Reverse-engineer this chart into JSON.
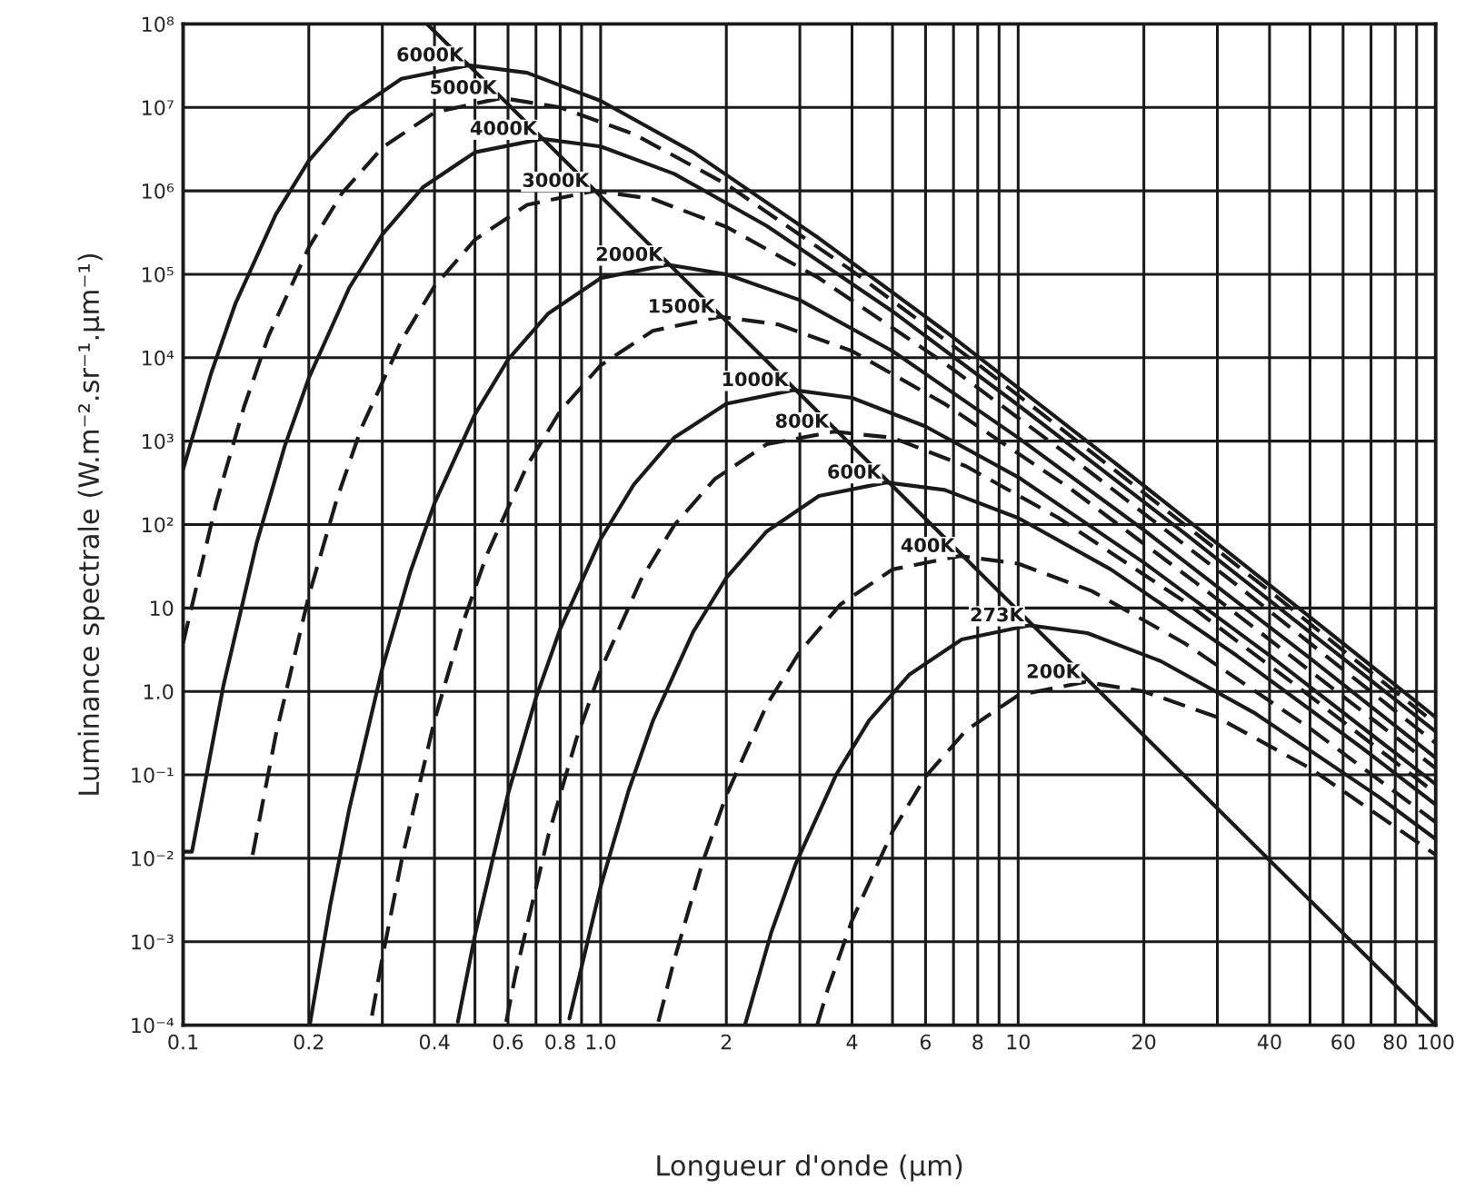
{
  "chart_data": {
    "type": "line",
    "xlabel": "Longueur d'onde (μm)",
    "ylabel": "Luminance spectrale (W.m⁻².sr⁻¹.μm⁻¹)",
    "log": "xy",
    "grid": true,
    "xlim": [
      0.1,
      100
    ],
    "ylim": [
      0.0001,
      100000000
    ],
    "xticks": [
      0.1,
      0.2,
      {
        "value": 0.3,
        "label": null
      },
      0.4,
      {
        "value": 0.5,
        "label": null
      },
      0.6,
      {
        "value": 0.7,
        "label": null
      },
      0.8,
      {
        "value": 0.9,
        "label": null
      },
      {
        "value": 1,
        "label": "1.0"
      },
      2,
      {
        "value": 3,
        "label": null
      },
      4,
      {
        "value": 5,
        "label": null
      },
      6,
      {
        "value": 7,
        "label": null
      },
      8,
      {
        "value": 9,
        "label": null
      },
      10,
      20,
      {
        "value": 30,
        "label": null
      },
      40,
      {
        "value": 50,
        "label": null
      },
      60,
      {
        "value": 70,
        "label": null
      },
      80,
      {
        "value": 90,
        "label": null
      },
      100
    ],
    "yticks": [
      {
        "value": 0.0001,
        "label": "10⁻⁴"
      },
      {
        "value": 0.001,
        "label": "10⁻³"
      },
      {
        "value": 0.01,
        "label": "10⁻²"
      },
      {
        "value": 0.1,
        "label": "10⁻¹"
      },
      {
        "value": 1,
        "label": "1.0"
      },
      10,
      {
        "value": 100,
        "label": "10²"
      },
      {
        "value": 1000,
        "label": "10³"
      },
      {
        "value": 10000,
        "label": "10⁴"
      },
      {
        "value": 100000,
        "label": "10⁵"
      },
      {
        "value": 1000000,
        "label": "10⁶"
      },
      {
        "value": 10000000,
        "label": "10⁷"
      },
      {
        "value": 100000000,
        "label": "10⁸"
      }
    ],
    "series": [
      {
        "name": "6000K",
        "color": "#1a1a1a",
        "line_style": "solid",
        "x": [
          0.1,
          0.1167,
          0.1333,
          0.1667,
          0.2,
          0.25,
          0.3333,
          0.483,
          0.6667,
          1.0,
          1.667,
          3.333,
          6.667,
          16.67,
          33.33,
          50,
          100
        ],
        "values": [
          460.0,
          6500.0,
          44000.0,
          520000.0,
          2300000.0,
          8300000.0,
          22000000.0,
          32000000.0,
          26000000.0,
          12000000.0,
          2900000.0,
          270000.0,
          21000.0,
          600.0,
          39,
          7.8,
          0.49
        ]
      },
      {
        "name": "5000K",
        "color": "#1a1a1a",
        "line_style": "dashed",
        "x": [
          0.1,
          0.12,
          0.14,
          0.16,
          0.2,
          0.24,
          0.3,
          0.4,
          0.58,
          0.8,
          1.2,
          2,
          4,
          8,
          20,
          40,
          60,
          100
        ],
        "values": [
          3.8,
          180.0,
          2600.0,
          18000.0,
          210000.0,
          930000.0,
          3300000.0,
          8700000.0,
          13000000.0,
          10000000.0,
          4800000.0,
          1200000.0,
          110000.0,
          8400.0,
          240.0,
          16,
          3.1,
          0.41
        ]
      },
      {
        "name": "4000K",
        "color": "#1a1a1a",
        "line_style": "solid",
        "x": [
          0.1,
          0.105,
          0.125,
          0.15,
          0.175,
          0.2,
          0.25,
          0.3,
          0.375,
          0.5,
          0.7245,
          1,
          1.5,
          2.5,
          5,
          10,
          25,
          50,
          100
        ],
        "values": [
          0.012,
          0.012,
          1.2,
          60,
          860.0,
          5700.0,
          69000.0,
          300000.0,
          1100000.0,
          2900000.0,
          4200000.0,
          3400000.0,
          1600000.0,
          380000.0,
          36000.0,
          2700.0,
          79,
          5.1,
          0.33
        ]
      },
      {
        "name": "3000K",
        "color": "#1a1a1a",
        "line_style": "dashed",
        "x": [
          0.1467,
          0.1667,
          0.2,
          0.2333,
          0.2667,
          0.3333,
          0.4,
          0.5,
          0.6667,
          0.966,
          1.333,
          2,
          3.333,
          6.667,
          13.33,
          33.33,
          100
        ],
        "values": [
          0.011,
          0.3,
          14,
          200.0,
          1400.0,
          16000.0,
          72000.0,
          260000.0,
          680000.0,
          1000000.0,
          800000.0,
          370000.0,
          90000.0,
          8600.0,
          650.0,
          19,
          0.24
        ]
      },
      {
        "name": "2000K",
        "color": "#1a1a1a",
        "line_style": "solid",
        "x": [
          0.201,
          0.225,
          0.25,
          0.3,
          0.35,
          0.4,
          0.5,
          0.6,
          0.75,
          1,
          1.449,
          2,
          3,
          5,
          10,
          20,
          50,
          100
        ],
        "values": [
          0.0001,
          0.0027,
          0.039,
          1.9,
          27,
          180.0,
          2100.0,
          9500.0,
          34000.0,
          90000.0,
          130000.0,
          100000.0,
          49000.0,
          12000.0,
          1100.0,
          86,
          2.5,
          0.16
        ]
      },
      {
        "name": "1500K",
        "color": "#1a1a1a",
        "line_style": "dashed",
        "x": [
          0.2833,
          0.3,
          0.3333,
          0.4,
          0.4667,
          0.5333,
          0.6667,
          0.8,
          1,
          1.333,
          1.932,
          2.667,
          4,
          6.667,
          13.33,
          26.67,
          66.67,
          100
        ],
        "values": [
          0.00013,
          0.00064,
          0.0092,
          0.45,
          6.4,
          43,
          510.0,
          2300.0,
          8100.0,
          21000.0,
          31000.0,
          25000.0,
          12000.0,
          2800.0,
          270.0,
          20,
          0.58,
          0.12
        ]
      },
      {
        "name": "1000K",
        "color": "#1a1a1a",
        "line_style": "solid",
        "x": [
          0.455,
          0.5,
          0.6,
          0.7,
          0.8,
          1,
          1.2,
          1.5,
          2,
          2.898,
          4,
          6,
          10,
          20,
          40,
          100
        ],
        "values": [
          0.00011,
          0.0012,
          0.059,
          0.84,
          5.6,
          67,
          300.0,
          1100.0,
          2800.0,
          4100.0,
          3300.0,
          1500.0,
          370.0,
          35,
          2.7,
          0.077
        ]
      },
      {
        "name": "800K",
        "color": "#1a1a1a",
        "line_style": "dashed",
        "x": [
          0.594,
          0.625,
          0.75,
          0.875,
          1,
          1.25,
          1.5,
          1.875,
          2.5,
          3.6225,
          5,
          7.5,
          12.5,
          25,
          50,
          100
        ],
        "values": [
          0.00011,
          0.0004,
          0.019,
          0.27,
          1.8,
          22,
          98,
          350.0,
          920.0,
          1300.0,
          1100.0,
          500.0,
          120.0,
          12,
          0.88,
          0.06
        ]
      },
      {
        "name": "600K",
        "color": "#1a1a1a",
        "line_style": "solid",
        "x": [
          0.8417,
          1,
          1.167,
          1.333,
          1.667,
          2,
          2.5,
          3.333,
          4.83,
          6.667,
          10,
          16.67,
          33.33,
          66.67,
          100
        ],
        "values": [
          0.00012,
          0.0046,
          0.065,
          0.44,
          5.2,
          23,
          83,
          220.0,
          320.0,
          260.0,
          120.0,
          29,
          2.7,
          0.21,
          0.044
        ]
      },
      {
        "name": "400K",
        "color": "#1a1a1a",
        "line_style": "dashed",
        "x": [
          1.375,
          1.5,
          1.75,
          2,
          2.5,
          3,
          3.75,
          5,
          7.245,
          10,
          15,
          25,
          50,
          100
        ],
        "values": [
          0.00011,
          0.0006,
          0.0086,
          0.057,
          0.69,
          3.0,
          11,
          29,
          42,
          34,
          16,
          3.8,
          0.36,
          0.027
        ]
      },
      {
        "name": "273K",
        "color": "#1a1a1a",
        "line_style": "solid",
        "x": [
          2.216,
          2.564,
          2.93,
          3.663,
          4.396,
          5.495,
          7.326,
          10.615,
          14.65,
          21.98,
          36.63,
          73.26,
          100
        ],
        "values": [
          0.0001,
          0.0013,
          0.0085,
          0.1,
          0.45,
          1.6,
          4.2,
          6.2,
          5.0,
          2.3,
          0.56,
          0.054,
          0.017
        ]
      },
      {
        "name": "200K",
        "color": "#1a1a1a",
        "line_style": "dashed",
        "x": [
          3.3,
          3.5,
          4,
          5,
          6,
          7.5,
          10,
          14.49,
          20,
          30,
          50,
          100
        ],
        "values": [
          0.0001,
          0.00027,
          0.0018,
          0.021,
          0.095,
          0.34,
          0.9,
          1.3,
          1.0,
          0.49,
          0.12,
          0.011
        ]
      },
      {
        "color": "#1a1a1a",
        "line_style": "solid",
        "x": [
          0.384,
          100
        ],
        "values": [
          100000000.0,
          0.0001
        ]
      }
    ]
  }
}
